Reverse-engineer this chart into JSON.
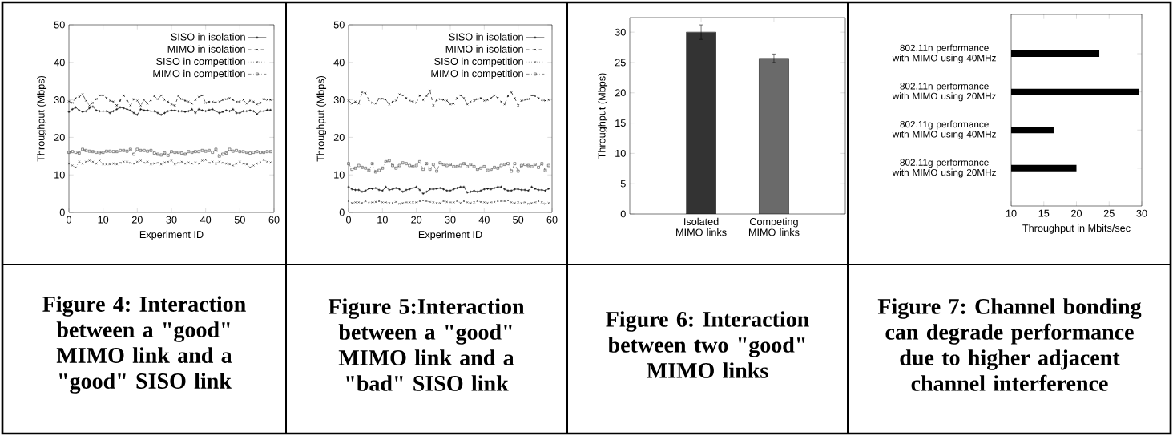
{
  "chart_data": [
    {
      "type": "line",
      "xlabel": "Experiment ID",
      "ylabel": "Throughput (Mbps)",
      "xlim": [
        0,
        60
      ],
      "ylim": [
        0,
        50
      ],
      "xticks": [
        0,
        10,
        20,
        30,
        40,
        50,
        60
      ],
      "yticks": [
        0,
        10,
        20,
        30,
        40,
        50
      ],
      "legend": "top right",
      "grid": false,
      "x": [
        0,
        1,
        2,
        3,
        4,
        5,
        6,
        7,
        8,
        9,
        10,
        11,
        12,
        13,
        14,
        15,
        16,
        17,
        18,
        19,
        20,
        21,
        22,
        23,
        24,
        25,
        26,
        27,
        28,
        29,
        30,
        31,
        32,
        33,
        34,
        35,
        36,
        37,
        38,
        39,
        40,
        41,
        42,
        43,
        44,
        45,
        46,
        47,
        48,
        49,
        50,
        51,
        52,
        53,
        54,
        55,
        56,
        57,
        58,
        59
      ],
      "series": [
        {
          "name": "SISO in isolation",
          "color": "#000000",
          "marker": "plus",
          "line_style": "solid",
          "values": [
            26.8,
            27.5,
            28.0,
            27.2,
            26.8,
            27.0,
            27.8,
            28.2,
            27.2,
            27.0,
            27.0,
            27.0,
            26.5,
            27.0,
            27.5,
            28.0,
            27.8,
            27.5,
            27.2,
            26.5,
            26.0,
            27.5,
            27.2,
            27.2,
            27.0,
            27.0,
            26.5,
            26.0,
            26.5,
            27.0,
            27.2,
            27.2,
            27.0,
            27.0,
            26.8,
            27.0,
            27.5,
            26.5,
            27.5,
            27.2,
            27.0,
            27.3,
            27.5,
            27.0,
            26.5,
            26.8,
            27.2,
            27.0,
            27.5,
            26.5,
            26.5,
            27.0,
            27.0,
            27.2,
            27.0,
            26.2,
            27.0,
            27.0,
            27.3,
            27.3
          ]
        },
        {
          "name": "MIMO in isolation",
          "color": "#000000",
          "marker": "cross",
          "line_style": "dashed",
          "values": [
            29.6,
            29.2,
            30.5,
            30.8,
            31.5,
            29.8,
            28.5,
            29.2,
            30.2,
            31.2,
            31.2,
            30.5,
            29.8,
            29.5,
            28.5,
            29.8,
            31.2,
            30.0,
            28.5,
            30.2,
            29.8,
            28.5,
            30.0,
            29.0,
            30.0,
            31.0,
            30.2,
            31.2,
            30.0,
            29.5,
            28.8,
            28.5,
            31.0,
            30.2,
            29.8,
            29.5,
            29.0,
            30.0,
            30.8,
            31.2,
            29.2,
            29.5,
            29.5,
            29.3,
            29.5,
            30.0,
            30.2,
            30.5,
            30.0,
            29.5,
            29.5,
            30.0,
            29.0,
            29.8,
            29.5,
            28.8,
            29.2,
            30.2,
            30.0,
            30.0
          ]
        },
        {
          "name": "SISO in competition",
          "color": "#333333",
          "marker": "cross",
          "line_style": "dotted",
          "values": [
            13.0,
            12.5,
            12.0,
            13.5,
            13.0,
            13.5,
            13.8,
            13.5,
            13.0,
            13.8,
            12.8,
            12.8,
            12.8,
            13.0,
            12.8,
            13.2,
            13.5,
            13.5,
            13.2,
            13.0,
            13.5,
            13.8,
            13.2,
            13.5,
            12.8,
            13.0,
            13.2,
            12.8,
            13.3,
            13.5,
            13.8,
            12.8,
            13.2,
            13.5,
            13.0,
            13.3,
            13.0,
            13.3,
            13.0,
            13.8,
            14.0,
            13.2,
            13.5,
            13.0,
            13.5,
            13.2,
            13.0,
            12.8,
            12.5,
            13.0,
            13.5,
            13.0,
            12.8,
            12.0,
            12.5,
            13.0,
            13.3,
            14.0,
            13.5,
            13.3
          ]
        },
        {
          "name": "MIMO in competition",
          "color": "#555555",
          "marker": "square",
          "line_style": "dashdot",
          "values": [
            16.0,
            16.2,
            16.0,
            15.8,
            16.8,
            16.5,
            16.3,
            16.2,
            16.0,
            15.9,
            16.0,
            16.3,
            16.3,
            16.2,
            16.2,
            16.5,
            16.5,
            16.3,
            16.8,
            15.5,
            16.8,
            16.5,
            16.5,
            16.3,
            16.5,
            15.8,
            15.5,
            15.3,
            15.8,
            15.2,
            16.2,
            16.0,
            16.0,
            15.8,
            15.5,
            16.2,
            16.0,
            16.2,
            16.2,
            16.5,
            16.3,
            16.5,
            16.0,
            16.8,
            15.0,
            15.5,
            15.8,
            16.8,
            16.3,
            16.5,
            16.2,
            16.2,
            16.0,
            15.8,
            16.0,
            16.2,
            16.0,
            16.0,
            16.2,
            16.2
          ]
        }
      ],
      "annotations": [
        "Figure 4: Interaction between a \"good\" MIMO link and a \"good\" SISO link"
      ]
    },
    {
      "type": "line",
      "xlabel": "Experiment ID",
      "ylabel": "Throughput (Mbps)",
      "xlim": [
        0,
        60
      ],
      "ylim": [
        0,
        50
      ],
      "xticks": [
        0,
        10,
        20,
        30,
        40,
        50,
        60
      ],
      "yticks": [
        0,
        10,
        20,
        30,
        40,
        50
      ],
      "legend": "top right",
      "grid": false,
      "x": [
        0,
        1,
        2,
        3,
        4,
        5,
        6,
        7,
        8,
        9,
        10,
        11,
        12,
        13,
        14,
        15,
        16,
        17,
        18,
        19,
        20,
        21,
        22,
        23,
        24,
        25,
        26,
        27,
        28,
        29,
        30,
        31,
        32,
        33,
        34,
        35,
        36,
        37,
        38,
        39,
        40,
        41,
        42,
        43,
        44,
        45,
        46,
        47,
        48,
        49,
        50,
        51,
        52,
        53,
        54,
        55,
        56,
        57,
        58,
        59
      ],
      "series": [
        {
          "name": "SISO in isolation",
          "color": "#000000",
          "marker": "plus",
          "line_style": "solid",
          "values": [
            6.8,
            6.2,
            6.0,
            6.0,
            5.5,
            5.8,
            6.3,
            6.3,
            6.5,
            6.0,
            5.8,
            6.8,
            6.0,
            6.2,
            6.5,
            6.2,
            5.5,
            6.0,
            6.2,
            6.5,
            6.8,
            6.0,
            5.0,
            5.5,
            6.2,
            6.2,
            6.3,
            6.5,
            6.2,
            5.8,
            5.8,
            6.2,
            6.5,
            6.8,
            6.8,
            5.3,
            5.5,
            5.8,
            5.5,
            5.8,
            6.2,
            6.3,
            6.2,
            6.5,
            6.8,
            6.8,
            6.2,
            5.8,
            5.8,
            6.2,
            6.2,
            6.0,
            6.0,
            5.8,
            6.8,
            6.3,
            6.0,
            6.0,
            5.8,
            6.3
          ]
        },
        {
          "name": "MIMO in isolation",
          "color": "#000000",
          "marker": "cross",
          "line_style": "dashed",
          "values": [
            29.8,
            29.0,
            29.5,
            29.0,
            32.0,
            31.8,
            30.0,
            29.2,
            29.0,
            30.3,
            30.3,
            30.0,
            28.8,
            29.5,
            29.8,
            31.5,
            31.2,
            30.5,
            29.8,
            29.5,
            29.2,
            31.2,
            30.0,
            31.0,
            32.5,
            28.5,
            30.0,
            30.2,
            30.0,
            29.8,
            28.8,
            29.0,
            30.5,
            31.2,
            30.5,
            28.8,
            29.5,
            29.8,
            30.2,
            30.5,
            29.8,
            30.0,
            30.5,
            31.2,
            30.5,
            29.5,
            28.8,
            31.0,
            32.0,
            30.5,
            28.5,
            29.8,
            30.0,
            30.2,
            31.2,
            31.0,
            30.5,
            30.0,
            29.8,
            30.0
          ]
        },
        {
          "name": "SISO in competition",
          "color": "#333333",
          "marker": "cross",
          "line_style": "dotted",
          "values": [
            3.0,
            2.5,
            2.7,
            2.7,
            2.5,
            3.0,
            2.5,
            2.7,
            2.8,
            3.0,
            2.7,
            2.7,
            2.5,
            2.5,
            2.8,
            2.3,
            2.5,
            2.7,
            2.7,
            2.7,
            2.7,
            3.0,
            3.2,
            3.0,
            2.8,
            2.7,
            2.5,
            2.5,
            3.0,
            2.8,
            2.7,
            2.7,
            3.0,
            2.5,
            3.0,
            2.7,
            2.5,
            2.7,
            3.0,
            2.8,
            2.7,
            2.5,
            2.7,
            2.8,
            3.0,
            3.0,
            3.0,
            3.2,
            2.7,
            2.5,
            2.7,
            2.5,
            2.7,
            2.3,
            2.5,
            2.7,
            3.0,
            2.7,
            2.3,
            2.5
          ]
        },
        {
          "name": "MIMO in competition",
          "color": "#555555",
          "marker": "square",
          "line_style": "dashdot",
          "values": [
            13.0,
            11.5,
            11.8,
            12.5,
            12.0,
            11.8,
            11.2,
            13.0,
            10.8,
            11.2,
            11.8,
            13.5,
            13.8,
            12.5,
            11.8,
            12.5,
            13.2,
            13.0,
            12.5,
            12.2,
            12.5,
            13.5,
            11.5,
            13.0,
            11.5,
            12.8,
            11.0,
            13.2,
            12.8,
            12.5,
            12.8,
            12.2,
            12.2,
            12.5,
            13.0,
            12.2,
            12.8,
            12.2,
            11.5,
            11.8,
            12.2,
            11.2,
            11.5,
            12.0,
            11.8,
            12.5,
            12.8,
            13.0,
            11.0,
            13.0,
            11.0,
            12.5,
            12.8,
            12.5,
            12.2,
            12.8,
            12.0,
            13.0,
            11.2,
            12.5
          ]
        }
      ],
      "annotations": [
        "Figure 5:Interaction between a \"good\" MIMO link and a \"bad\" SISO link"
      ]
    },
    {
      "type": "bar",
      "ylabel": "Throughput (Mbps)",
      "categories": [
        "Isolated MIMO links",
        "Competing MIMO links"
      ],
      "values": [
        30.0,
        25.7
      ],
      "errors": [
        1.2,
        0.7
      ],
      "colors": [
        "#333333",
        "#6a6a6a"
      ],
      "ylim": [
        0,
        32.4
      ],
      "yticks": [
        0,
        5,
        10,
        15,
        20,
        25,
        30
      ],
      "grid": false,
      "annotations": [
        "Figure 6: Interaction between two \"good\" MIMO links"
      ]
    },
    {
      "type": "bar",
      "orientation": "horizontal",
      "xlabel": "Throughput in Mbits/sec",
      "categories": [
        "802.11n performance with MIMO using 40MHz",
        "802.11n performance with MIMO using 20MHz",
        "802.11g performance with MIMO using 40MHz",
        "802.11g performance with MIMO using 20MHz"
      ],
      "values": [
        23.5,
        29.6,
        16.5,
        20.0
      ],
      "color": "#000000",
      "xlim": [
        10,
        30
      ],
      "xticks": [
        10,
        15,
        20,
        25,
        30
      ],
      "grid": false,
      "annotations": [
        "Figure 7: Channel bonding can degrade performance due to higher adjacent channel interference"
      ]
    }
  ]
}
